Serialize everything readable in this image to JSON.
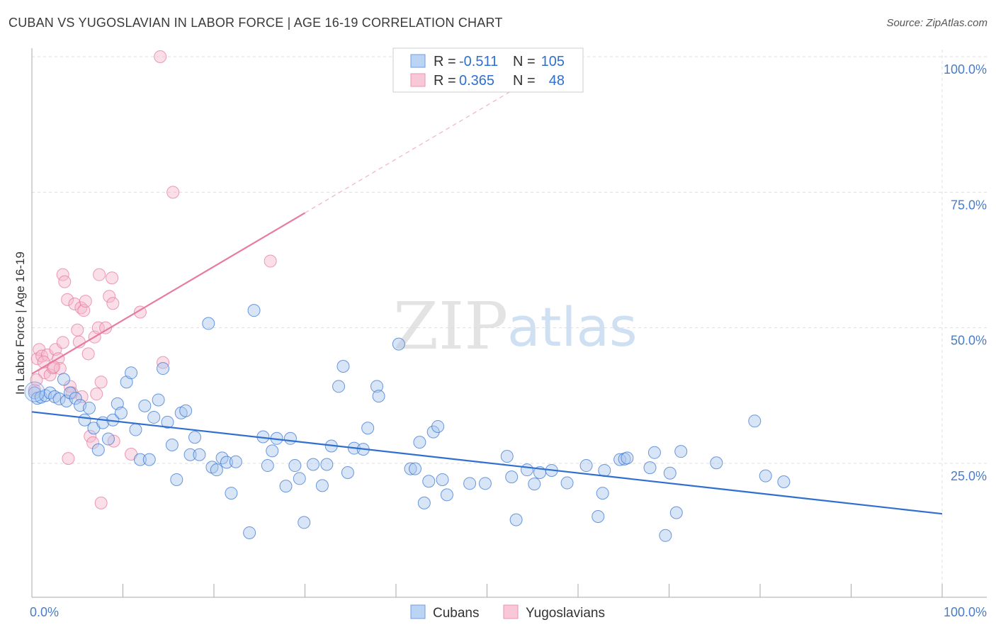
{
  "title": "CUBAN VS YUGOSLAVIAN IN LABOR FORCE | AGE 16-19 CORRELATION CHART",
  "source": "Source: ZipAtlas.com",
  "watermark": {
    "zip": "ZIP",
    "atlas": "atlas"
  },
  "colors": {
    "blue": "#2f6fd0",
    "blue_fill": "#a9c6ee",
    "pink": "#e8799f",
    "pink_fill": "#f5b8cb",
    "grid": "#dddddd",
    "axis": "#999999"
  },
  "legend": {
    "rows": [
      {
        "r_label": "R =",
        "r_value": "-0.511",
        "n_label": "N =",
        "n_value": "105"
      },
      {
        "r_label": "R =",
        "r_value": "0.365",
        "n_label": "N =",
        "n_value": "48"
      }
    ]
  },
  "bottom_legend": [
    "Cubans",
    "Yugoslavians"
  ],
  "chart_data": {
    "type": "scatter",
    "ylabel": "In Labor Force | Age 16-19",
    "x_tick_labels": [
      "0.0%",
      "100.0%"
    ],
    "y_tick_labels": [
      "100.0%",
      "75.0%",
      "50.0%",
      "25.0%"
    ],
    "y_ticks": [
      100,
      75,
      50,
      25
    ],
    "xlim": [
      0,
      100
    ],
    "ylim": [
      0,
      102
    ],
    "grid": true,
    "series": [
      {
        "name": "Cubans",
        "r": -0.511,
        "n": 105,
        "trend": {
          "x0": 0,
          "y0": 34.5,
          "x1": 100,
          "y1": 15.7
        },
        "points": [
          [
            0.3,
            38
          ],
          [
            0.6,
            37
          ],
          [
            1.0,
            37.2
          ],
          [
            1.5,
            37.5
          ],
          [
            2.0,
            38
          ],
          [
            2.5,
            37.3
          ],
          [
            3.0,
            36.9
          ],
          [
            3.5,
            40.5
          ],
          [
            3.8,
            36.5
          ],
          [
            4.2,
            38
          ],
          [
            4.8,
            37
          ],
          [
            5.3,
            35.7
          ],
          [
            5.8,
            33
          ],
          [
            6.3,
            35.2
          ],
          [
            6.8,
            31.5
          ],
          [
            7.3,
            27.5
          ],
          [
            7.8,
            32.5
          ],
          [
            8.4,
            29.5
          ],
          [
            8.9,
            33
          ],
          [
            9.4,
            36
          ],
          [
            9.8,
            34.3
          ],
          [
            10.4,
            40
          ],
          [
            10.9,
            41.7
          ],
          [
            11.4,
            31.2
          ],
          [
            11.9,
            25.7
          ],
          [
            12.4,
            35.6
          ],
          [
            12.9,
            25.7
          ],
          [
            13.4,
            33.5
          ],
          [
            13.9,
            36.7
          ],
          [
            14.4,
            42.5
          ],
          [
            14.9,
            32.6
          ],
          [
            15.4,
            28.4
          ],
          [
            15.9,
            22
          ],
          [
            16.4,
            34.3
          ],
          [
            16.9,
            34.7
          ],
          [
            17.4,
            26.6
          ],
          [
            17.9,
            29.8
          ],
          [
            18.4,
            26.6
          ],
          [
            19.4,
            50.8
          ],
          [
            19.8,
            24.3
          ],
          [
            20.3,
            23.8
          ],
          [
            20.9,
            26
          ],
          [
            21.4,
            25.2
          ],
          [
            21.9,
            19.5
          ],
          [
            22.4,
            25.3
          ],
          [
            23.9,
            12.2
          ],
          [
            24.4,
            53.2
          ],
          [
            25.4,
            29.9
          ],
          [
            25.9,
            24.6
          ],
          [
            26.4,
            27.3
          ],
          [
            26.9,
            29.6
          ],
          [
            27.9,
            20.8
          ],
          [
            28.4,
            29.6
          ],
          [
            28.9,
            24.6
          ],
          [
            29.4,
            22.2
          ],
          [
            29.9,
            14.1
          ],
          [
            30.9,
            24.8
          ],
          [
            31.9,
            20.9
          ],
          [
            32.4,
            24.8
          ],
          [
            32.9,
            28.2
          ],
          [
            34.2,
            42.9
          ],
          [
            33.7,
            39.2
          ],
          [
            34.7,
            23.3
          ],
          [
            35.4,
            27.8
          ],
          [
            36.4,
            27.6
          ],
          [
            36.9,
            31.5
          ],
          [
            37.9,
            39.2
          ],
          [
            38.1,
            37.4
          ],
          [
            40.3,
            47
          ],
          [
            41.6,
            24
          ],
          [
            42.1,
            24
          ],
          [
            42.6,
            28.9
          ],
          [
            43.1,
            17.7
          ],
          [
            43.6,
            21.7
          ],
          [
            44.1,
            30.8
          ],
          [
            44.6,
            31.8
          ],
          [
            45.1,
            22
          ],
          [
            45.6,
            19.2
          ],
          [
            48.1,
            21.3
          ],
          [
            49.8,
            21.3
          ],
          [
            52.2,
            26.3
          ],
          [
            52.7,
            22.5
          ],
          [
            53.2,
            14.6
          ],
          [
            54.4,
            23.8
          ],
          [
            55.2,
            21.2
          ],
          [
            55.8,
            23.3
          ],
          [
            57.1,
            23.7
          ],
          [
            58.8,
            21.4
          ],
          [
            60.9,
            24.6
          ],
          [
            62.2,
            15.2
          ],
          [
            62.7,
            19.5
          ],
          [
            62.9,
            23.7
          ],
          [
            64.6,
            25.7
          ],
          [
            65.1,
            25.8
          ],
          [
            65.4,
            26
          ],
          [
            67.9,
            24.2
          ],
          [
            68.4,
            27
          ],
          [
            69.6,
            11.7
          ],
          [
            70.1,
            23.2
          ],
          [
            70.8,
            15.9
          ],
          [
            71.3,
            27.2
          ],
          [
            75.2,
            25.1
          ],
          [
            79.4,
            32.8
          ],
          [
            80.6,
            22.7
          ],
          [
            82.6,
            21.6
          ]
        ]
      },
      {
        "name": "Yugoslavians",
        "r": 0.365,
        "n": 48,
        "trend": {
          "x0": 0,
          "y0": 41.5,
          "x1": 30,
          "y1": 71.2
        },
        "trend_dashed": {
          "x0": 30,
          "y0": 71.2,
          "x1": 52.5,
          "y1": 93.5
        },
        "points": [
          [
            0.3,
            38.5
          ],
          [
            0.6,
            44.3
          ],
          [
            0.8,
            46
          ],
          [
            1.1,
            44.8
          ],
          [
            1.4,
            41.7
          ],
          [
            1.7,
            45
          ],
          [
            2.0,
            41.3
          ],
          [
            2.3,
            42.6
          ],
          [
            2.6,
            46
          ],
          [
            2.9,
            44.3
          ],
          [
            3.1,
            42.5
          ],
          [
            3.4,
            59.8
          ],
          [
            3.6,
            58.5
          ],
          [
            3.9,
            55.2
          ],
          [
            4.2,
            39.2
          ],
          [
            4.4,
            38
          ],
          [
            4.7,
            54.4
          ],
          [
            5.0,
            49.6
          ],
          [
            5.2,
            47.4
          ],
          [
            5.4,
            53.7
          ],
          [
            5.5,
            37.3
          ],
          [
            5.7,
            53.2
          ],
          [
            5.9,
            54.9
          ],
          [
            6.2,
            45.2
          ],
          [
            6.4,
            30
          ],
          [
            6.7,
            28.8
          ],
          [
            6.9,
            48.3
          ],
          [
            7.1,
            37.8
          ],
          [
            7.3,
            50
          ],
          [
            7.4,
            59.8
          ],
          [
            7.6,
            40
          ],
          [
            8.1,
            50
          ],
          [
            8.5,
            55.8
          ],
          [
            8.9,
            54.5
          ],
          [
            8.8,
            59.2
          ],
          [
            9.0,
            29.1
          ],
          [
            4.0,
            25.9
          ],
          [
            7.6,
            17.7
          ],
          [
            10.9,
            26.7
          ],
          [
            11.9,
            52.9
          ],
          [
            14.4,
            43.6
          ],
          [
            14.1,
            100
          ],
          [
            15.5,
            75
          ],
          [
            26.2,
            62.3
          ],
          [
            2.4,
            42.8
          ],
          [
            1.3,
            43.7
          ],
          [
            0.5,
            40.4
          ],
          [
            3.4,
            47.3
          ]
        ]
      }
    ]
  }
}
